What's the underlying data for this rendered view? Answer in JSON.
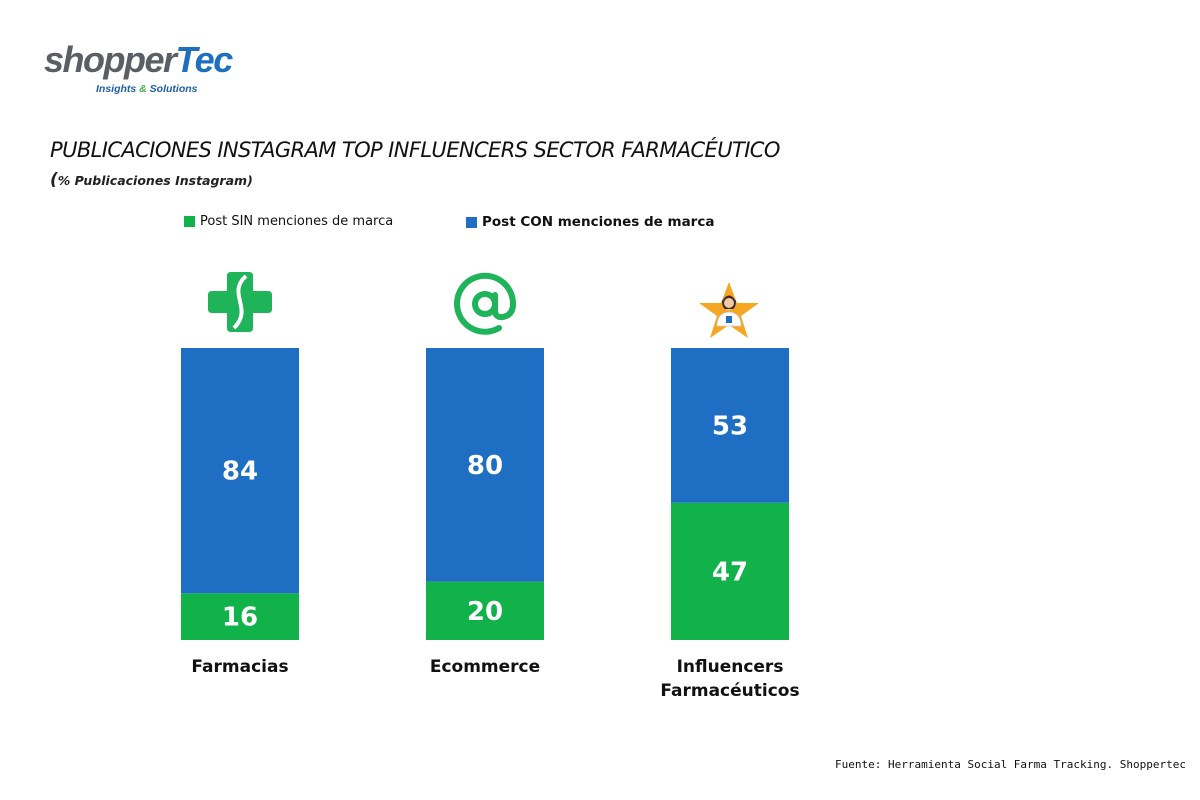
{
  "brand": {
    "name_part1": "shopper",
    "name_part2": "Tec",
    "tagline_part1": "Insights ",
    "tagline_amp": "&",
    "tagline_part2": " Solutions"
  },
  "colors": {
    "sin": "#12b24a",
    "con": "#1e6fc4",
    "icon_green": "#1fb35a"
  },
  "chart_data": {
    "type": "bar",
    "stacked": true,
    "title": "PUBLICACIONES INSTAGRAM TOP INFLUENCERS SECTOR FARMACÉUTICO",
    "subtitle": "% Publicaciones Instagram",
    "categories": [
      "Farmacias",
      "Ecommerce",
      "Influencers Farmacéuticos"
    ],
    "category_icons": [
      "pharmacy-cross-icon",
      "at-sign-icon",
      "star-pharmacist-icon"
    ],
    "ylim": [
      0,
      100
    ],
    "series": [
      {
        "name": "Post SIN menciones de marca",
        "values": [
          16,
          20,
          47
        ],
        "color": "#12b24a"
      },
      {
        "name": "Post CON menciones de marca",
        "values": [
          84,
          80,
          53
        ],
        "color": "#1e6fc4"
      }
    ],
    "legend": "top",
    "grid": false
  },
  "source": "Fuente: Herramienta Social Farma Tracking. Shoppertec"
}
